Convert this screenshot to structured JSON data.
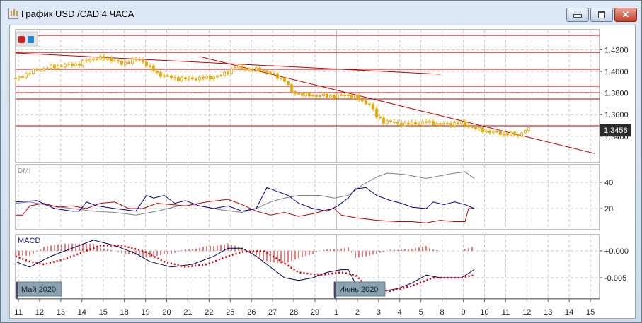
{
  "window": {
    "title": "График USD /CAD  4 ЧАСА",
    "buttons": [
      "minimize",
      "maximize",
      "close"
    ],
    "close_glyph": "✕"
  },
  "toolbar": {
    "icons": [
      "red-square-icon",
      "blue-square-icon"
    ]
  },
  "colors": {
    "candle": "#e8a800",
    "levels": "#c00000",
    "plus_di": "#00008b",
    "minus_di": "#c00000",
    "adx": "#808080",
    "macd_main": "#000050",
    "macd_signal": "#e00000",
    "histogram": "#c00000",
    "grid": "#c8c8c8",
    "price_label_bg": "#2b2b2b"
  },
  "chart_data": [
    {
      "type": "candlestick",
      "title": "USD/CAD 4H",
      "y_ticks": [
        "1.4200",
        "1.4000",
        "1.3800",
        "1.3600",
        "1.3400"
      ],
      "y_tick_values": [
        1.42,
        1.4,
        1.38,
        1.36,
        1.34
      ],
      "current_price": "1.3456",
      "close_keypoints": [
        [
          0,
          1.393
        ],
        [
          6,
          1.402
        ],
        [
          12,
          1.405
        ],
        [
          18,
          1.407
        ],
        [
          22,
          1.412
        ],
        [
          26,
          1.412
        ],
        [
          30,
          1.407
        ],
        [
          34,
          1.411
        ],
        [
          36,
          1.409
        ],
        [
          40,
          1.398
        ],
        [
          44,
          1.394
        ],
        [
          48,
          1.393
        ],
        [
          54,
          1.394
        ],
        [
          58,
          1.396
        ],
        [
          60,
          1.4
        ],
        [
          62,
          1.404
        ],
        [
          66,
          1.402
        ],
        [
          70,
          1.401
        ],
        [
          72,
          1.398
        ],
        [
          76,
          1.392
        ],
        [
          78,
          1.381
        ],
        [
          82,
          1.378
        ],
        [
          90,
          1.377
        ],
        [
          94,
          1.378
        ],
        [
          96,
          1.376
        ],
        [
          98,
          1.372
        ],
        [
          100,
          1.37
        ],
        [
          102,
          1.358
        ],
        [
          104,
          1.354
        ],
        [
          110,
          1.351
        ],
        [
          116,
          1.353
        ],
        [
          120,
          1.351
        ],
        [
          126,
          1.352
        ],
        [
          130,
          1.347
        ],
        [
          134,
          1.344
        ],
        [
          140,
          1.342
        ],
        [
          142,
          1.341
        ],
        [
          144,
          1.346
        ],
        [
          145,
          1.346
        ]
      ],
      "horizontal_levels": [
        1.4333,
        1.4176,
        1.402,
        1.3863,
        1.3804,
        1.3745,
        1.3497
      ],
      "trendlines": [
        [
          [
            0,
            1.417
          ],
          [
            120,
            1.3974
          ]
        ],
        [
          [
            52,
            1.4137
          ],
          [
            163.6,
            1.3241
          ]
        ]
      ]
    },
    {
      "type": "line",
      "label": "DMI",
      "y_ticks": [
        "40",
        "20"
      ],
      "y_tick_values": [
        40,
        20
      ],
      "plus_di": [
        [
          0,
          25
        ],
        [
          6,
          26
        ],
        [
          11,
          20
        ],
        [
          16,
          18
        ],
        [
          18,
          18
        ],
        [
          20,
          25
        ],
        [
          23,
          22
        ],
        [
          28,
          20
        ],
        [
          34,
          18
        ],
        [
          37,
          30
        ],
        [
          39,
          28
        ],
        [
          42,
          30
        ],
        [
          45,
          24
        ],
        [
          48,
          26
        ],
        [
          52,
          22
        ],
        [
          56,
          20
        ],
        [
          60,
          22
        ],
        [
          64,
          18
        ],
        [
          68,
          20
        ],
        [
          71,
          36
        ],
        [
          74,
          33
        ],
        [
          77,
          30
        ],
        [
          80,
          24
        ],
        [
          84,
          20
        ],
        [
          88,
          18
        ],
        [
          91,
          22
        ],
        [
          94,
          28
        ],
        [
          96,
          35
        ],
        [
          99,
          36
        ],
        [
          102,
          30
        ],
        [
          106,
          26
        ],
        [
          109,
          24
        ],
        [
          112,
          21
        ],
        [
          116,
          20
        ],
        [
          118,
          25
        ],
        [
          121,
          23
        ],
        [
          124,
          25
        ],
        [
          127,
          23
        ],
        [
          129.6,
          20
        ]
      ],
      "minus_di": [
        [
          0,
          15
        ],
        [
          2,
          15
        ],
        [
          4,
          22
        ],
        [
          8,
          24
        ],
        [
          12,
          21
        ],
        [
          16,
          22
        ],
        [
          20,
          20
        ],
        [
          24,
          24
        ],
        [
          28,
          25
        ],
        [
          32,
          20
        ],
        [
          36,
          20
        ],
        [
          40,
          24
        ],
        [
          44,
          23
        ],
        [
          48,
          22
        ],
        [
          54,
          25
        ],
        [
          60,
          27
        ],
        [
          64,
          23
        ],
        [
          68,
          18
        ],
        [
          72,
          15
        ],
        [
          76,
          17
        ],
        [
          80,
          14
        ],
        [
          84,
          16
        ],
        [
          88,
          19
        ],
        [
          90,
          20
        ],
        [
          92,
          15
        ],
        [
          96,
          13
        ],
        [
          102,
          11
        ],
        [
          108,
          10
        ],
        [
          112,
          10
        ],
        [
          116,
          9
        ],
        [
          120,
          11
        ],
        [
          124,
          10
        ],
        [
          127,
          10
        ],
        [
          128,
          20
        ],
        [
          129.6,
          20
        ]
      ],
      "adx": [
        [
          0,
          24
        ],
        [
          4,
          25
        ],
        [
          10,
          22
        ],
        [
          16,
          20
        ],
        [
          22,
          18
        ],
        [
          28,
          17
        ],
        [
          34,
          15
        ],
        [
          40,
          18
        ],
        [
          46,
          22
        ],
        [
          52,
          22
        ],
        [
          58,
          19
        ],
        [
          64,
          17
        ],
        [
          68,
          20
        ],
        [
          72,
          25
        ],
        [
          76,
          28
        ],
        [
          80,
          30
        ],
        [
          86,
          30
        ],
        [
          90,
          28
        ],
        [
          94,
          30
        ],
        [
          98,
          38
        ],
        [
          102,
          44
        ],
        [
          105,
          47
        ],
        [
          110,
          46
        ],
        [
          116,
          43
        ],
        [
          120,
          45
        ],
        [
          124,
          47
        ],
        [
          127,
          48
        ],
        [
          129.6,
          43
        ]
      ]
    },
    {
      "type": "line",
      "label": "MACD",
      "y_ticks": [
        "+0.000",
        "-0.005"
      ],
      "y_tick_values": [
        0,
        -0.005
      ],
      "main": [
        [
          0,
          -0.002
        ],
        [
          4,
          -0.003
        ],
        [
          10,
          -0.001
        ],
        [
          16,
          0.0005
        ],
        [
          22,
          0.002
        ],
        [
          28,
          0.001
        ],
        [
          34,
          -0.0005
        ],
        [
          38,
          -0.002
        ],
        [
          44,
          -0.003
        ],
        [
          50,
          -0.0025
        ],
        [
          56,
          -0.001
        ],
        [
          60,
          0.0005
        ],
        [
          64,
          0.0005
        ],
        [
          68,
          -0.001
        ],
        [
          72,
          -0.003
        ],
        [
          76,
          -0.005
        ],
        [
          80,
          -0.0055
        ],
        [
          84,
          -0.005
        ],
        [
          88,
          -0.004
        ],
        [
          92,
          -0.0035
        ],
        [
          94,
          -0.0035
        ],
        [
          96,
          -0.006
        ],
        [
          100,
          -0.008
        ],
        [
          104,
          -0.0075
        ],
        [
          108,
          -0.007
        ],
        [
          112,
          -0.006
        ],
        [
          116,
          -0.0045
        ],
        [
          120,
          -0.005
        ],
        [
          126,
          -0.005
        ],
        [
          129.6,
          -0.0035
        ]
      ],
      "signal": [
        [
          0,
          -0.001
        ],
        [
          4,
          -0.002
        ],
        [
          8,
          -0.0025
        ],
        [
          14,
          -0.0015
        ],
        [
          20,
          0
        ],
        [
          24,
          0.001
        ],
        [
          30,
          0.001
        ],
        [
          36,
          0
        ],
        [
          42,
          -0.002
        ],
        [
          48,
          -0.003
        ],
        [
          54,
          -0.0025
        ],
        [
          60,
          -0.001
        ],
        [
          64,
          -0.0002
        ],
        [
          70,
          0
        ],
        [
          74,
          -0.0015
        ],
        [
          80,
          -0.004
        ],
        [
          86,
          -0.0045
        ],
        [
          92,
          -0.004
        ],
        [
          96,
          -0.0045
        ],
        [
          100,
          -0.007
        ],
        [
          106,
          -0.0075
        ],
        [
          112,
          -0.0065
        ],
        [
          118,
          -0.005
        ],
        [
          126,
          -0.005
        ],
        [
          129.6,
          -0.0045
        ]
      ]
    }
  ],
  "x_axis": {
    "labels": [
      "11",
      "12",
      "13",
      "14",
      "15",
      "18",
      "19",
      "20",
      "21",
      "22",
      "25",
      "26",
      "27",
      "28",
      "29",
      "1",
      "2",
      "3",
      "4",
      "5",
      "8",
      "9",
      "10",
      "11",
      "12",
      "13",
      "14",
      "15"
    ],
    "period_markers": [
      {
        "label": "Май 2020",
        "index": 0
      },
      {
        "label": "Июнь 2020",
        "index": 15
      }
    ]
  }
}
